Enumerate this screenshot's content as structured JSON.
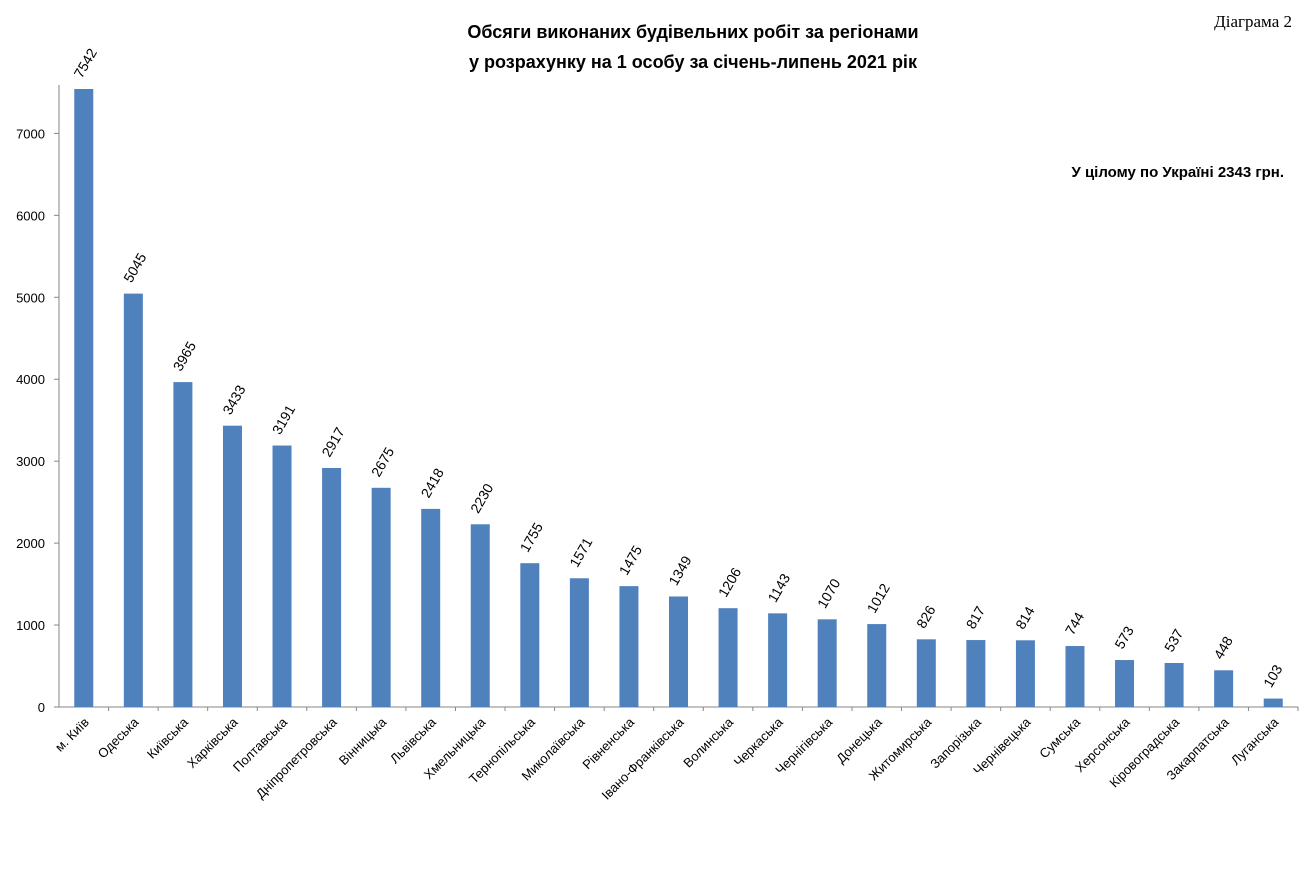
{
  "header": {
    "diagram_label": "Діаграма 2",
    "title_line1": "Обсяги виконаних будівельних робіт за регіонами",
    "title_line2": "у розрахунку на 1 особу  за січень-липень  2021 рік",
    "summary": "У цілому по Україні 2343 грн."
  },
  "chart_data": {
    "type": "bar",
    "title": "Обсяги виконаних будівельних робіт за регіонами у розрахунку на 1 особу  за січень-липень  2021 рік",
    "xlabel": "",
    "ylabel": "",
    "categories": [
      "м. Київ",
      "Одеська",
      "Київська",
      "Харківська",
      "Полтавська",
      "Дніпропетровська",
      "Вінницька",
      "Львівська",
      "Хмельницька",
      "Тернопільська",
      "Миколаївська",
      "Рівненська",
      "Івано-Франківська",
      "Волинська",
      "Черкаська",
      "Чернігівська",
      "Донецька",
      "Житомирська",
      "Запорізька",
      "Чернівецька",
      "Сумська",
      "Херсонська",
      "Кіровоградська",
      "Закарпатська",
      "Луганська"
    ],
    "values": [
      7542,
      5045,
      3965,
      3433,
      3191,
      2917,
      2675,
      2418,
      2230,
      1755,
      1571,
      1475,
      1349,
      1206,
      1143,
      1070,
      1012,
      826,
      817,
      814,
      744,
      573,
      537,
      448,
      103
    ],
    "ylim": [
      0,
      7542
    ],
    "yticks": [
      0,
      1000,
      2000,
      3000,
      4000,
      5000,
      6000,
      7000
    ],
    "grid": false,
    "legend": "none",
    "bar_color": "#4f81bd"
  }
}
